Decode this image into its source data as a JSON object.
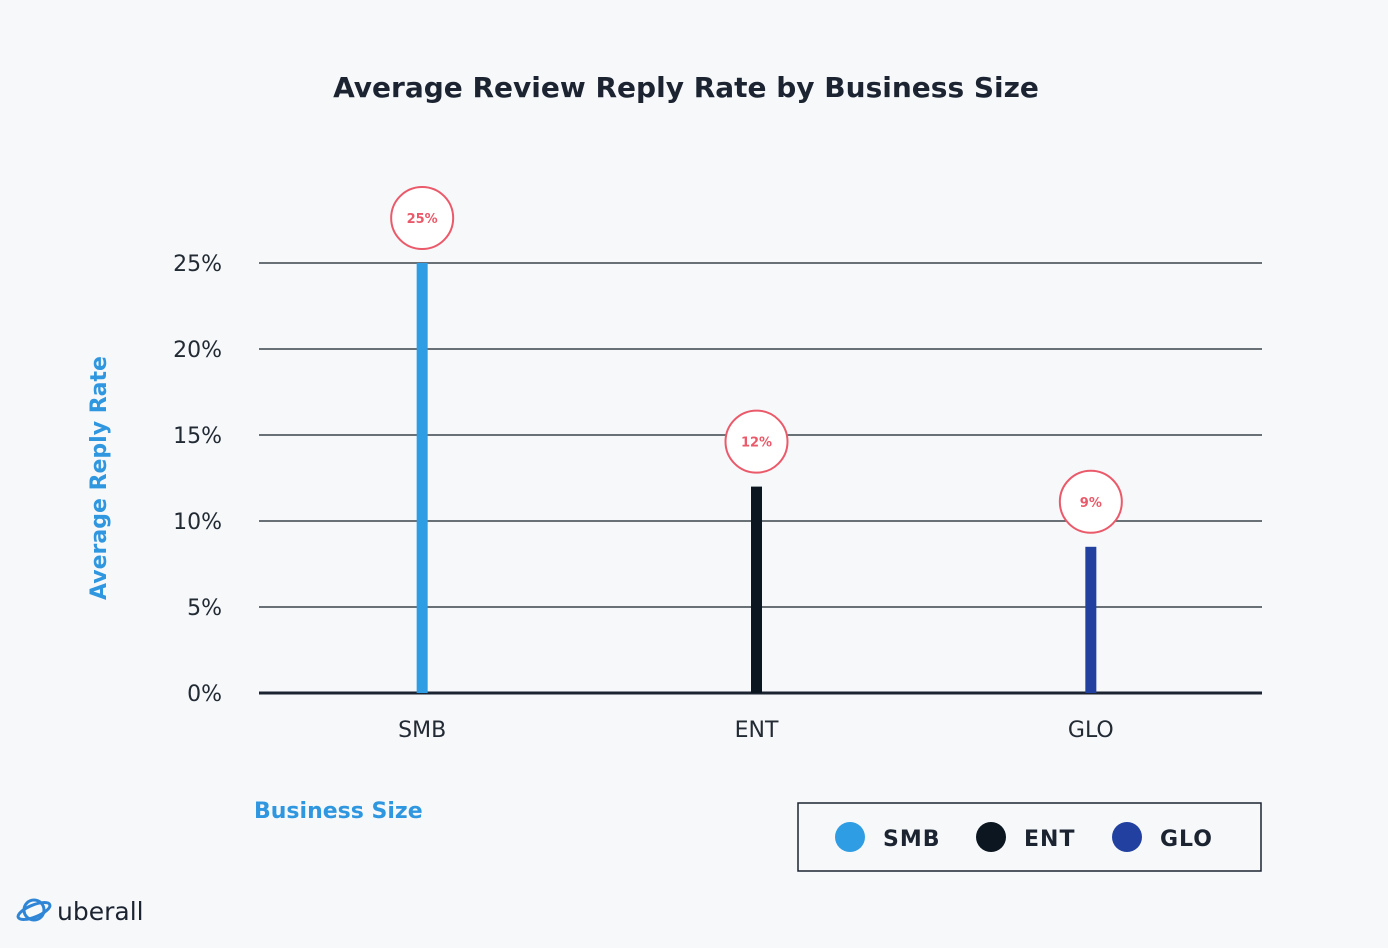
{
  "chart_data": {
    "type": "bar",
    "title": "Average Review Reply Rate by Business Size",
    "xlabel": "Business Size",
    "ylabel": "Average Reply Rate",
    "categories": [
      "SMB",
      "ENT",
      "GLO"
    ],
    "values": [
      25,
      12,
      8.5
    ],
    "data_labels": [
      "25%",
      "12%",
      "9%"
    ],
    "colors": [
      "#2f9de4",
      "#0c1620",
      "#2240a0"
    ],
    "ylim": [
      0,
      25
    ],
    "y_ticks": [
      0,
      5,
      10,
      15,
      20,
      25
    ],
    "y_tick_labels": [
      "0%",
      "5%",
      "10%",
      "15%",
      "20%",
      "25%"
    ],
    "grid": true,
    "legend": {
      "placement": "bottom-right",
      "entries": [
        "SMB",
        "ENT",
        "GLO"
      ]
    }
  },
  "brand": {
    "name": "uberall",
    "icon": "planet-logo-icon"
  },
  "colors": {
    "axis_title": "#2f96e0",
    "label_circle": "#ea5a6a",
    "gridline": "#3a424b",
    "text": "#1c2431"
  }
}
